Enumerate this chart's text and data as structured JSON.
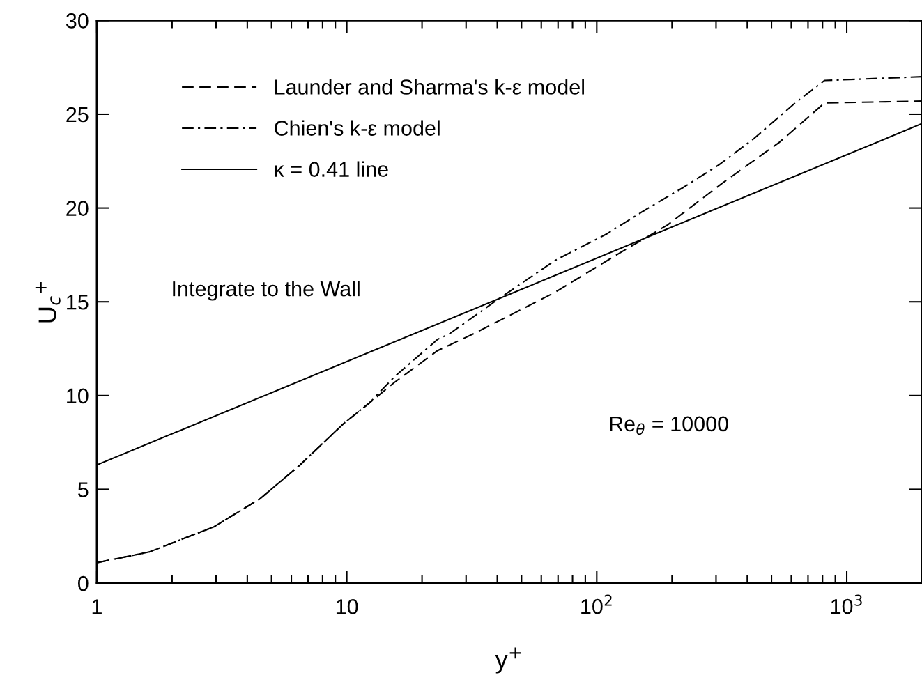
{
  "chart_data": {
    "type": "line",
    "xlabel": "y$^{+}$",
    "ylabel": "U$_{c}$$^{+}$",
    "log": "x",
    "xlim": [
      1,
      2000
    ],
    "xticks": [
      1,
      {
        "value": 2,
        "label": null
      },
      {
        "value": 3,
        "label": null
      },
      {
        "value": 4,
        "label": null
      },
      {
        "value": 5,
        "label": null
      },
      {
        "value": 6,
        "label": null
      },
      {
        "value": 7,
        "label": null
      },
      {
        "value": 8,
        "label": null
      },
      {
        "value": 9,
        "label": null
      },
      10,
      {
        "value": 20,
        "label": null
      },
      {
        "value": 30,
        "label": null
      },
      {
        "value": 40,
        "label": null
      },
      {
        "value": 50,
        "label": null
      },
      {
        "value": 60,
        "label": null
      },
      {
        "value": 70,
        "label": null
      },
      {
        "value": 80,
        "label": null
      },
      {
        "value": 90,
        "label": null
      },
      {
        "value": 100,
        "label": "10$^{2}$"
      },
      {
        "value": 200,
        "label": null
      },
      {
        "value": 300,
        "label": null
      },
      {
        "value": 400,
        "label": null
      },
      {
        "value": 500,
        "label": null
      },
      {
        "value": 600,
        "label": null
      },
      {
        "value": 700,
        "label": null
      },
      {
        "value": 800,
        "label": null
      },
      {
        "value": 900,
        "label": null
      },
      {
        "value": 1000,
        "label": "10$^{3}$"
      }
    ],
    "ylim": [
      0,
      30
    ],
    "yticks": [
      0,
      5,
      10,
      15,
      20,
      25,
      30
    ],
    "grid": false,
    "legend": "top left",
    "marker": "none",
    "series": [
      {
        "name": "Launder and Sharma's k-ε model",
        "color": "#000000",
        "line_style": "dashed",
        "x": [
          1.01,
          1.62,
          2.94,
          4.5,
          6.5,
          9.7,
          12.3,
          15.5,
          23.1,
          32.2,
          68,
          120,
          192,
          316,
          537,
          815,
          2000
        ],
        "values": [
          1.1,
          1.66,
          3.0,
          4.5,
          6.3,
          8.5,
          9.6,
          10.7,
          12.4,
          13.3,
          15.5,
          17.5,
          19.1,
          21.3,
          23.5,
          25.6,
          25.7
        ]
      },
      {
        "name": "Chien's k-ε model",
        "color": "#000000",
        "line_style": "dashdot",
        "x": [
          1.01,
          1.62,
          2.94,
          4.5,
          6.5,
          9.7,
          12.3,
          15.5,
          23.1,
          25.8,
          39,
          68,
          109,
          152,
          222,
          308,
          425,
          622,
          815,
          2000
        ],
        "values": [
          1.1,
          1.66,
          3.0,
          4.5,
          6.3,
          8.5,
          9.6,
          11.0,
          13.0,
          13.3,
          15.0,
          17.2,
          18.6,
          19.8,
          21.1,
          22.3,
          23.7,
          25.6,
          26.8,
          27.0
        ]
      },
      {
        "name": "κ = 0.41 line",
        "color": "#000000",
        "line_style": "solid",
        "x": [
          1,
          2000
        ],
        "values": [
          6.3,
          24.5
        ]
      }
    ],
    "annotations": [
      "Integrate to the Wall",
      "Re$_{θ}$ = 10000"
    ]
  }
}
